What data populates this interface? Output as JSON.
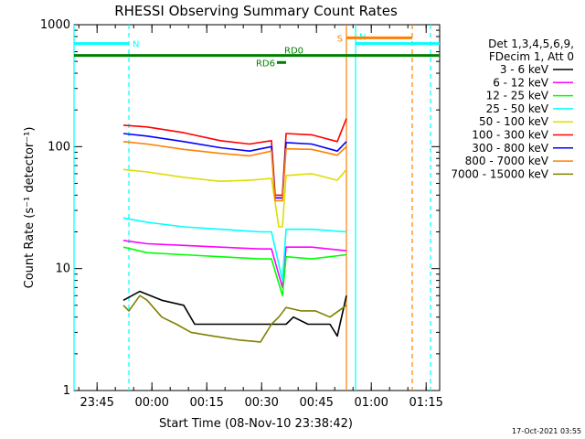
{
  "chart_data": {
    "type": "line",
    "title": "RHESSI Observing Summary Count Rates",
    "xlabel": "Start Time (08-Nov-10 23:38:42)",
    "ylabel": "Count Rate (s⁻¹ detector⁻¹)",
    "yscale": "log",
    "ylim": [
      1,
      1000
    ],
    "x_unit": "minutes after 23:38:42",
    "xlim": [
      0,
      100
    ],
    "x_ticks": [
      {
        "x": 6.3,
        "label": "23:45"
      },
      {
        "x": 21.3,
        "label": "00:00"
      },
      {
        "x": 36.3,
        "label": "00:15"
      },
      {
        "x": 51.3,
        "label": "00:30"
      },
      {
        "x": 66.3,
        "label": "00:45"
      },
      {
        "x": 81.3,
        "label": "01:00"
      },
      {
        "x": 96.3,
        "label": "01:15"
      }
    ],
    "y_ticks": [
      {
        "y": 1,
        "label": "1"
      },
      {
        "y": 10,
        "label": "10"
      },
      {
        "y": 100,
        "label": "100"
      },
      {
        "y": 1000,
        "label": "1000"
      }
    ],
    "legend_header": [
      "Det 1,3,4,5,6,9,",
      "FDecim 1, Att 0"
    ],
    "legend_position": "right",
    "series": [
      {
        "name": "3 - 6 keV",
        "color": "#000000",
        "x": [
          13.5,
          18,
          24,
          30,
          33,
          38,
          45,
          51,
          54,
          57,
          58,
          60,
          64,
          70,
          72,
          74.5
        ],
        "y": [
          5.5,
          6.5,
          5.5,
          5,
          3.5,
          3.5,
          3.5,
          3.5,
          3.5,
          3.5,
          3.5,
          4,
          3.5,
          3.5,
          2.8,
          6
        ]
      },
      {
        "name": "6 - 12 keV",
        "color": "#ff00ff",
        "x": [
          13.5,
          20,
          30,
          40,
          51,
          54,
          57,
          58,
          65,
          74.5
        ],
        "y": [
          17,
          16,
          15.5,
          15,
          14.5,
          14.5,
          7,
          15,
          15,
          14
        ]
      },
      {
        "name": "12 - 25 keV",
        "color": "#00ff00",
        "x": [
          13.5,
          20,
          30,
          40,
          51,
          54,
          57,
          58,
          65,
          74.5
        ],
        "y": [
          15,
          13.5,
          13,
          12.5,
          12,
          12,
          6,
          12.5,
          12,
          13
        ]
      },
      {
        "name": "25 - 50 keV",
        "color": "#00ffff",
        "x": [
          13.5,
          20,
          30,
          40,
          51,
          54,
          57,
          58,
          65,
          74.5
        ],
        "y": [
          26,
          24,
          22,
          21,
          20,
          20,
          8,
          21,
          21,
          20
        ]
      },
      {
        "name": "50 - 100 keV",
        "color": "#dddd00",
        "x": [
          13.5,
          20,
          30,
          40,
          48,
          54,
          56,
          57,
          58,
          65,
          72,
          74.5
        ],
        "y": [
          65,
          62,
          56,
          52,
          53,
          55,
          22,
          22,
          58,
          60,
          53,
          65
        ]
      },
      {
        "name": "100 - 300 keV",
        "color": "#ff0000",
        "x": [
          13.5,
          20,
          30,
          40,
          48,
          54,
          55,
          57,
          58,
          65,
          72,
          74.5
        ],
        "y": [
          150,
          145,
          130,
          112,
          105,
          112,
          40,
          40,
          128,
          125,
          110,
          170
        ]
      },
      {
        "name": "300 - 800 keV",
        "color": "#0000ff",
        "x": [
          13.5,
          20,
          30,
          40,
          48,
          54,
          55,
          57,
          58,
          65,
          72,
          74.5
        ],
        "y": [
          128,
          122,
          110,
          98,
          92,
          100,
          38,
          38,
          108,
          105,
          92,
          110
        ]
      },
      {
        "name": "800 - 7000 keV",
        "color": "#ff8000",
        "x": [
          13.5,
          20,
          30,
          40,
          48,
          54,
          55,
          57,
          58,
          65,
          72,
          74.5
        ],
        "y": [
          110,
          105,
          95,
          88,
          84,
          92,
          36,
          36,
          96,
          95,
          85,
          100
        ]
      },
      {
        "name": "7000 - 15000 keV",
        "color": "#808000",
        "x": [
          13.5,
          15,
          18,
          20,
          24,
          28,
          32,
          38,
          45,
          51,
          54,
          56,
          58,
          62,
          66,
          70,
          74.5
        ],
        "y": [
          5,
          4.5,
          6,
          5.5,
          4,
          3.5,
          3,
          2.8,
          2.6,
          2.5,
          3.5,
          4,
          4.8,
          4.5,
          4.5,
          4,
          5
        ]
      }
    ],
    "markers": [
      {
        "label": "N",
        "color": "#00ffff",
        "type": "night",
        "x_start": 0,
        "x_end": 15,
        "level": 700
      },
      {
        "label": "N",
        "color": "#00ffff",
        "type": "night",
        "x_start": 77,
        "x_end": 100,
        "level": 700
      },
      {
        "label": "S",
        "color": "#ff8000",
        "type": "saa",
        "x_start": 74.5,
        "x_end": 92.5,
        "level": 780
      },
      {
        "label": "RD0",
        "color": "#008000",
        "type": "bar",
        "x_start": 0,
        "x_end": 100,
        "level": 560
      },
      {
        "label": "RD6",
        "color": "#008000",
        "type": "bar",
        "x_start": 55.5,
        "x_end": 58,
        "level": 490
      }
    ],
    "vlines": [
      {
        "x": 0,
        "color": "#00ffff",
        "style": "solid"
      },
      {
        "x": 15,
        "color": "#00ffff",
        "style": "dashed"
      },
      {
        "x": 74.5,
        "color": "#ff8000",
        "style": "solid"
      },
      {
        "x": 77,
        "color": "#00ffff",
        "style": "solid"
      },
      {
        "x": 92.5,
        "color": "#ff8000",
        "style": "dashed"
      },
      {
        "x": 97.5,
        "color": "#00ffff",
        "style": "dashed"
      }
    ]
  },
  "footer_date": "17-Oct-2021 03:55"
}
